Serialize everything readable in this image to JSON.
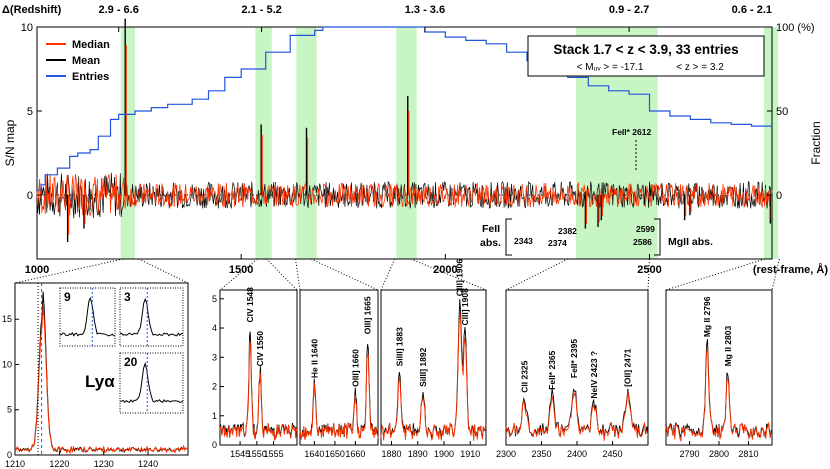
{
  "chart_data": {
    "type": "line",
    "main": {
      "left_ylabel": "S/N map",
      "right_ylabel": "Fraction",
      "left_yticks": [
        0,
        5,
        10
      ],
      "right_yticks": [
        "0",
        "50",
        "100 (%)"
      ],
      "left_ylim": [
        -2.6,
        10.6
      ],
      "xlim": [
        1000,
        2800
      ],
      "xticks": [
        1000,
        1500,
        2000,
        2500
      ],
      "xlabel": "(rest-frame, Å)",
      "top_label": "Δ(Redshift)",
      "top_ticks": [
        {
          "x": 1200,
          "label": "2.9 - 6.6"
        },
        {
          "x": 1550,
          "label": "2.1 - 5.2"
        },
        {
          "x": 1950,
          "label": "1.3 - 3.6"
        },
        {
          "x": 2450,
          "label": "0.9 - 2.7"
        },
        {
          "x": 2800,
          "label": "0.6 - 2.1"
        }
      ],
      "legend": {
        "placement": "top-left",
        "entries": [
          {
            "name": "Median",
            "color": "#ff3300"
          },
          {
            "name": "Mean",
            "color": "#000000"
          },
          {
            "name": "Entries",
            "color": "#2255dd"
          }
        ]
      },
      "info_title": "Stack 1.7 < z < 3.9,  33 entries",
      "info_sub1": "< Mᵤᵥ > = -17.1",
      "info_sub2": "< z > = 3.2",
      "entries_fraction_percent": {
        "x": [
          1000,
          1010,
          1020,
          1050,
          1080,
          1100,
          1130,
          1150,
          1180,
          1200,
          1240,
          1280,
          1320,
          1380,
          1420,
          1460,
          1500,
          1560,
          1620,
          1680,
          1700,
          1750,
          1800,
          1840,
          1870,
          1890,
          1900,
          1950,
          2000,
          2050,
          2100,
          2150,
          2200,
          2250,
          2300,
          2350,
          2400,
          2450,
          2500,
          2550,
          2600,
          2650,
          2700,
          2750,
          2800
        ],
        "y": [
          3,
          6,
          12,
          16,
          23,
          25,
          27,
          35,
          45,
          48,
          50,
          52,
          54,
          57,
          62,
          70,
          75,
          85,
          95,
          98,
          100,
          100,
          100,
          100,
          100,
          100,
          100,
          97,
          94,
          92,
          90,
          85,
          80,
          75,
          70,
          65,
          62,
          60,
          50,
          47,
          45,
          43,
          42,
          41,
          41
        ]
      },
      "highlight_bands_A": [
        [
          1205,
          1240
        ],
        [
          1535,
          1575
        ],
        [
          1635,
          1685
        ],
        [
          1880,
          1930
        ],
        [
          2320,
          2520
        ],
        [
          2780,
          2815
        ]
      ],
      "spikes": [
        {
          "x": 1216,
          "y": 10.5,
          "series": "both"
        },
        {
          "x": 1549,
          "y": 4.2,
          "series": "both"
        },
        {
          "x": 1660,
          "y": 4.0,
          "series": "both"
        },
        {
          "x": 1908,
          "y": 5.9,
          "series": "both"
        },
        {
          "x": 2343,
          "y": -2.0,
          "series": "both"
        },
        {
          "x": 2374,
          "y": -1.9,
          "series": "both"
        },
        {
          "x": 2382,
          "y": -1.5,
          "series": "both"
        },
        {
          "x": 2586,
          "y": -1.5,
          "series": "both"
        },
        {
          "x": 2599,
          "y": -1.2,
          "series": "both"
        },
        {
          "x": 2796,
          "y": -1.7,
          "series": "both"
        },
        {
          "x": 1075,
          "y": -2.8,
          "series": "both"
        },
        {
          "x": 1115,
          "y": -2.0,
          "series": "both"
        }
      ],
      "annotations": {
        "fe_abs": "FeII\nabs.",
        "fe_2343": "2343",
        "fe_2374": "2374",
        "fe_2382": "2382",
        "fe_2586": "2586",
        "fe_2599": "2599",
        "fe_star": "FeII* 2612",
        "mg_abs": "MgII abs."
      }
    },
    "panels": [
      {
        "id": "lya",
        "xlim": [
          1210,
          1249
        ],
        "ylim": [
          0,
          19
        ],
        "xticks": [
          1210,
          1220,
          1230,
          1240
        ],
        "yticks": [
          0,
          5,
          10,
          15
        ],
        "label": "Lyα",
        "dashed_x": 1216,
        "dotted_x": 1215.2,
        "insets": [
          {
            "label": "9"
          },
          {
            "label": "3"
          },
          {
            "label": "20"
          }
        ]
      },
      {
        "id": "civ",
        "xlim": [
          1539,
          1562
        ],
        "xticks": [
          1545,
          1550,
          1555
        ],
        "yticks": [
          0,
          1,
          2,
          3,
          4,
          5
        ],
        "ylim": [
          0,
          5.3
        ],
        "lines": [
          {
            "x": 1548,
            "h": 3.5,
            "label": "CIV 1548"
          },
          {
            "x": 1551,
            "h": 2.0,
            "label": "CIV 1550"
          }
        ]
      },
      {
        "id": "heii",
        "xlim": [
          1633,
          1671
        ],
        "xticks": [
          1640,
          1650,
          1660
        ],
        "ylim": [
          0,
          5.3
        ],
        "lines": [
          {
            "x": 1640,
            "h": 1.6,
            "label": "He II 1640"
          },
          {
            "x": 1660,
            "h": 1.3,
            "label": "OIII] 1660"
          },
          {
            "x": 1666,
            "h": 3.1,
            "label": "OIII] 1665"
          }
        ]
      },
      {
        "id": "ciii",
        "xlim": [
          1876,
          1916
        ],
        "xticks": [
          1880,
          1890,
          1900,
          1910
        ],
        "ylim": [
          0,
          5.3
        ],
        "lines": [
          {
            "x": 1883,
            "h": 2.0,
            "label": "SiIII] 1883"
          },
          {
            "x": 1892,
            "h": 1.3,
            "label": "SiIII] 1892"
          },
          {
            "x": 1906,
            "h": 4.4,
            "label": "CIII] 1906"
          },
          {
            "x": 1908,
            "h": 3.4,
            "label": "CIII] 1908"
          }
        ]
      },
      {
        "id": "feii",
        "xlim": [
          2300,
          2500
        ],
        "xticks": [
          2300,
          2350,
          2400,
          2450
        ],
        "ylim": [
          0,
          5.3
        ],
        "lines": [
          {
            "x": 2326,
            "h": 1.1,
            "label": "CII 2325"
          },
          {
            "x": 2365,
            "h": 1.2,
            "label": "FeII* 2365"
          },
          {
            "x": 2396,
            "h": 1.6,
            "label": "FeII* 2395"
          },
          {
            "x": 2424,
            "h": 0.9,
            "label": "NeIV 2423 ?"
          },
          {
            "x": 2471,
            "h": 1.3,
            "label": "[OII] 2471"
          }
        ]
      },
      {
        "id": "mgii",
        "xlim": [
          2782,
          2818
        ],
        "xticks": [
          2790,
          2800,
          2810
        ],
        "ylim": [
          0,
          5.3
        ],
        "lines": [
          {
            "x": 2796,
            "h": 3.0,
            "label": "Mg II 2796"
          },
          {
            "x": 2803,
            "h": 2.0,
            "label": "Mg II 2803"
          }
        ]
      }
    ]
  }
}
